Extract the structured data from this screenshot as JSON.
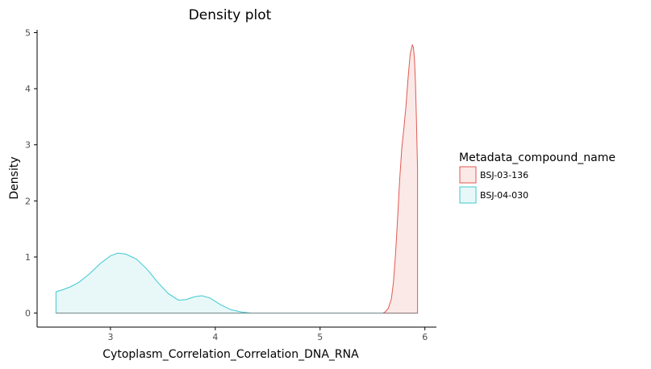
{
  "chart_data": {
    "type": "area",
    "title": "Density plot",
    "xlabel": "Cytoplasm_Correlation_Correlation_DNA_RNA",
    "ylabel": "Density",
    "xlim": [
      2.3,
      6.11
    ],
    "ylim": [
      -0.25,
      5.05
    ],
    "xticks": [
      3,
      4,
      5,
      6
    ],
    "yticks": [
      0,
      1,
      2,
      3,
      4,
      5
    ],
    "grid": false,
    "legend": {
      "title": "Metadata_compound_name",
      "position": "right"
    },
    "series": [
      {
        "name": "BSJ-03-136",
        "color": "#e05a53",
        "fill": "#fbe9e7",
        "points": [
          [
            5.6,
            0.0
          ],
          [
            5.62,
            0.02
          ],
          [
            5.65,
            0.08
          ],
          [
            5.68,
            0.25
          ],
          [
            5.7,
            0.55
          ],
          [
            5.72,
            1.05
          ],
          [
            5.74,
            1.7
          ],
          [
            5.76,
            2.4
          ],
          [
            5.78,
            2.95
          ],
          [
            5.8,
            3.3
          ],
          [
            5.82,
            3.7
          ],
          [
            5.84,
            4.2
          ],
          [
            5.86,
            4.62
          ],
          [
            5.88,
            4.78
          ],
          [
            5.89,
            4.74
          ],
          [
            5.9,
            4.55
          ],
          [
            5.91,
            4.1
          ],
          [
            5.92,
            3.4
          ],
          [
            5.93,
            2.55
          ]
        ]
      },
      {
        "name": "BSJ-04-030",
        "color": "#3ec9cf",
        "fill": "#e8f8f9",
        "points": [
          [
            2.48,
            0.38
          ],
          [
            2.55,
            0.42
          ],
          [
            2.62,
            0.47
          ],
          [
            2.7,
            0.55
          ],
          [
            2.8,
            0.7
          ],
          [
            2.9,
            0.88
          ],
          [
            3.0,
            1.02
          ],
          [
            3.07,
            1.07
          ],
          [
            3.15,
            1.05
          ],
          [
            3.25,
            0.96
          ],
          [
            3.35,
            0.78
          ],
          [
            3.45,
            0.55
          ],
          [
            3.55,
            0.35
          ],
          [
            3.65,
            0.23
          ],
          [
            3.72,
            0.24
          ],
          [
            3.8,
            0.29
          ],
          [
            3.87,
            0.31
          ],
          [
            3.95,
            0.27
          ],
          [
            4.05,
            0.15
          ],
          [
            4.15,
            0.06
          ],
          [
            4.25,
            0.02
          ],
          [
            4.35,
            0.0
          ],
          [
            4.6,
            0.0
          ],
          [
            5.0,
            0.0
          ],
          [
            5.5,
            0.0
          ],
          [
            5.93,
            0.0
          ]
        ]
      }
    ]
  }
}
